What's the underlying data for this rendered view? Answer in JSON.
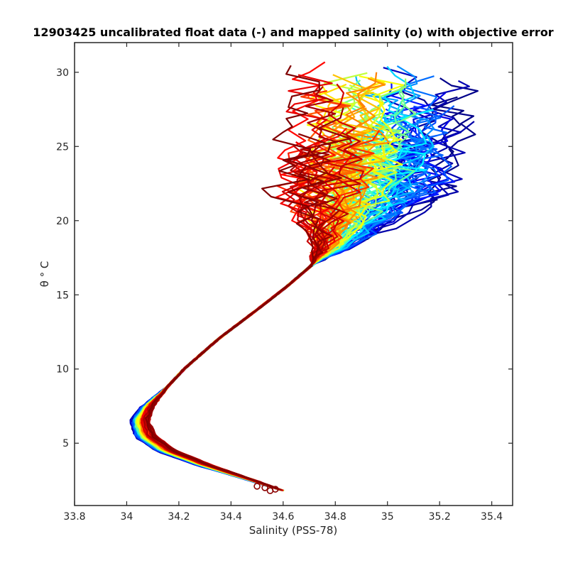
{
  "chart_data": {
    "type": "line",
    "title": "12903425 uncalibrated float data (-) and mapped salinity (o) with objective error",
    "xlabel": "Salinity (PSS-78)",
    "ylabel": "θ ° C",
    "xlim": [
      33.8,
      35.48
    ],
    "ylim": [
      0.8,
      32
    ],
    "xticks": [
      33.8,
      34,
      34.2,
      34.4,
      34.6,
      34.8,
      35,
      35.2,
      35.4
    ],
    "xtick_labels": [
      "33.8",
      "34",
      "34.2",
      "34.4",
      "34.6",
      "34.8",
      "35",
      "35.2",
      "35.4"
    ],
    "yticks": [
      5,
      10,
      15,
      20,
      25,
      30
    ],
    "ytick_labels": [
      "5",
      "10",
      "15",
      "20",
      "25",
      "30"
    ],
    "grid": false,
    "colormap": "jet",
    "series_count": 100,
    "mapped_salinity_marker": "o",
    "profile_envelope": [
      {
        "theta": 1.8,
        "salinity": 34.6
      },
      {
        "theta": 2.5,
        "salinity": 34.48
      },
      {
        "theta": 3.5,
        "salinity": 34.3
      },
      {
        "theta": 4.5,
        "salinity": 34.15
      },
      {
        "theta": 5.5,
        "salinity": 34.07
      },
      {
        "theta": 6.5,
        "salinity": 34.05
      },
      {
        "theta": 7.5,
        "salinity": 34.08
      },
      {
        "theta": 8.5,
        "salinity": 34.14
      },
      {
        "theta": 10.0,
        "salinity": 34.22
      },
      {
        "theta": 12.0,
        "salinity": 34.35
      },
      {
        "theta": 14.0,
        "salinity": 34.5
      },
      {
        "theta": 15.5,
        "salinity": 34.61
      },
      {
        "theta": 17.0,
        "salinity": 34.71
      },
      {
        "theta": 18.5,
        "salinity": 34.8
      },
      {
        "theta": 20.0,
        "salinity": 34.85
      },
      {
        "theta": 22.0,
        "salinity": 34.9
      },
      {
        "theta": 24.0,
        "salinity": 34.93
      },
      {
        "theta": 26.0,
        "salinity": 34.95
      },
      {
        "theta": 28.0,
        "salinity": 34.95
      },
      {
        "theta": 29.5,
        "salinity": 34.95
      }
    ],
    "mapped_salinity_points": [
      {
        "theta": 1.8,
        "salinity": 34.55
      },
      {
        "theta": 1.9,
        "salinity": 34.57
      },
      {
        "theta": 2.0,
        "salinity": 34.53
      },
      {
        "theta": 2.1,
        "salinity": 34.5
      }
    ]
  }
}
